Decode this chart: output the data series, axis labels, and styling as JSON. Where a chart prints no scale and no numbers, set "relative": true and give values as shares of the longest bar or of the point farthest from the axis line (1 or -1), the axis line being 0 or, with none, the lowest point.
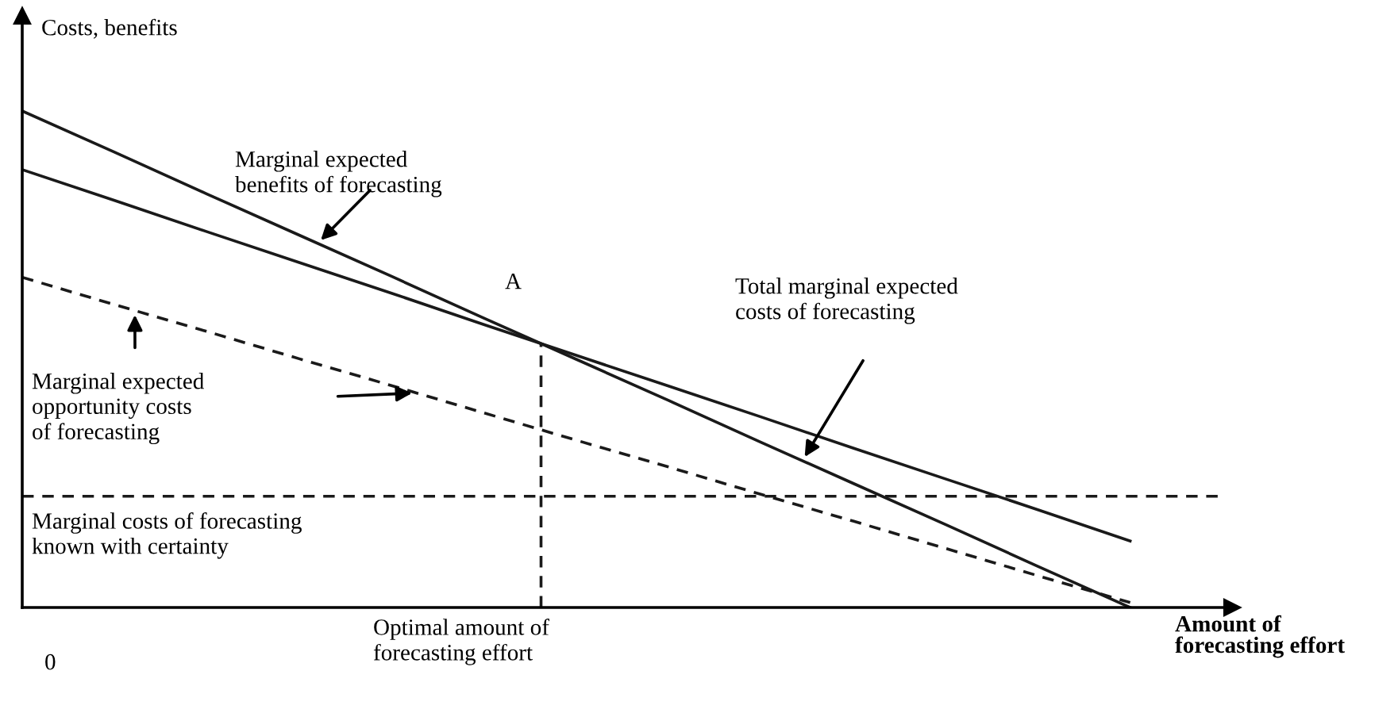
{
  "chart_data": {
    "type": "line",
    "relative": true,
    "xlabel": "Amount of\nforecasting effort",
    "ylabel": "Costs, benefits",
    "categories": [
      null,
      null,
      null,
      null,
      null,
      null,
      null,
      null,
      null,
      null,
      null,
      null,
      null,
      null
    ],
    "series": [
      {
        "color": "#1a1a1a",
        "line_style": "solid",
        "values": [
          1,
          0.917,
          0.833,
          0.75,
          0.667,
          0.583,
          0.5,
          0.417,
          0.333,
          0.25,
          0.167,
          0.083,
          0,
          null
        ]
      },
      {
        "color": "#1a1a1a",
        "line_style": "solid",
        "values": [
          0.882,
          0.82,
          0.757,
          0.695,
          0.633,
          0.57,
          0.508,
          0.446,
          0.384,
          0.321,
          0.259,
          0.197,
          0.134,
          null
        ]
      },
      {
        "color": "#1a1a1a",
        "line_style": "dashed",
        "values": [
          0.665,
          0.61,
          0.556,
          0.501,
          0.447,
          0.392,
          0.337,
          0.283,
          0.228,
          0.174,
          0.119,
          0.064,
          0.01,
          null
        ]
      },
      {
        "color": "#1a1a1a",
        "line_style": "dashed",
        "values": [
          0.224,
          0.224,
          0.224,
          0.224,
          0.224,
          0.224,
          0.224,
          0.224,
          0.224,
          0.224,
          0.224,
          0.224,
          0.224,
          0.224
        ]
      }
    ],
    "annotations": [
      "Marginal expected\nbenefits of forecasting",
      "A",
      "Total marginal expected\ncosts of forecasting",
      "Marginal expected\nopportunity costs\nof forecasting",
      "Marginal costs of forecasting\nknown with certainty",
      "Optimal amount of\nforecasting effort",
      "0"
    ],
    "marker": "none"
  }
}
